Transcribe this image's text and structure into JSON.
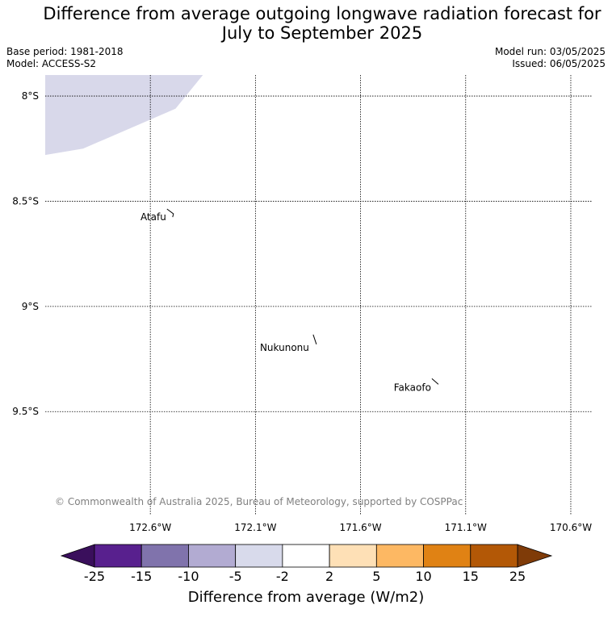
{
  "title": {
    "line1": "Difference from average outgoing longwave radiation forecast for",
    "line2": "July to September 2025"
  },
  "meta": {
    "base_period": "Base period: 1981-2018",
    "model": "Model: ACCESS-S2",
    "model_run": "Model run: 03/05/2025",
    "issued": "Issued: 06/05/2025"
  },
  "map": {
    "lat_labels": [
      "8°S",
      "8.5°S",
      "9°S",
      "9.5°S"
    ],
    "lat_values": [
      -8,
      -8.5,
      -9,
      -9.5
    ],
    "lon_labels": [
      "172.6°W",
      "172.1°W",
      "171.6°W",
      "171.1°W",
      "170.6°W"
    ],
    "lon_values": [
      -172.6,
      -172.1,
      -171.6,
      -171.1,
      -170.6
    ],
    "extent": {
      "lon_min": -173.1,
      "lon_max": -170.5,
      "lat_min": -9.99,
      "lat_max": -7.9
    },
    "places": [
      {
        "name": "Atafu",
        "lon": -172.49,
        "lat": -8.56
      },
      {
        "name": "Nukunonu",
        "lon": -171.81,
        "lat": -9.18
      },
      {
        "name": "Fakaofo",
        "lon": -171.23,
        "lat": -9.37
      }
    ],
    "anomaly_region": {
      "category": "-5 to -2",
      "color": "#d8d8ea"
    },
    "copyright": "© Commonwealth of Australia 2025, Bureau of Meteorology, supported by COSPPac"
  },
  "colorbar": {
    "title": "Difference from average (W/m2)",
    "tick_labels": [
      "-25",
      "-15",
      "-10",
      "-5",
      "-2",
      "2",
      "5",
      "10",
      "15",
      "25"
    ],
    "under_color": "#3a0f5c",
    "over_color": "#7f3b08",
    "colors": [
      "#58208e",
      "#8073ac",
      "#b2abd2",
      "#d8daeb",
      "#ffffff",
      "#fee0b6",
      "#fdb863",
      "#e08214",
      "#b35806"
    ]
  }
}
